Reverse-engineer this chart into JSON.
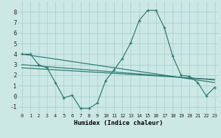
{
  "xlabel": "Humidex (Indice chaleur)",
  "background_color": "#cce8e5",
  "grid_color": "#aacfcc",
  "line_color": "#2a7a6e",
  "xlim": [
    -0.5,
    23.5
  ],
  "ylim": [
    -1.6,
    9.0
  ],
  "xticks": [
    0,
    1,
    2,
    3,
    4,
    5,
    6,
    7,
    8,
    9,
    10,
    11,
    12,
    13,
    14,
    15,
    16,
    17,
    18,
    19,
    20,
    21,
    22,
    23
  ],
  "yticks": [
    -1,
    0,
    1,
    2,
    3,
    4,
    5,
    6,
    7,
    8
  ],
  "main_x": [
    0,
    1,
    2,
    3,
    4,
    5,
    6,
    7,
    8,
    9,
    10,
    11,
    12,
    13,
    14,
    15,
    16,
    17,
    18,
    19,
    20,
    21,
    22,
    23
  ],
  "main_y": [
    4.0,
    4.0,
    3.0,
    2.7,
    1.3,
    -0.15,
    0.1,
    -1.15,
    -1.15,
    -0.65,
    1.5,
    2.5,
    3.6,
    5.1,
    7.2,
    8.15,
    8.15,
    6.5,
    3.8,
    2.0,
    1.9,
    1.3,
    0.05,
    0.85
  ],
  "line2_x": [
    0,
    23
  ],
  "line2_y": [
    4.0,
    1.3
  ],
  "line3_x": [
    0,
    23
  ],
  "line3_y": [
    3.0,
    1.55
  ],
  "line4_x": [
    0,
    23
  ],
  "line4_y": [
    2.7,
    1.6
  ]
}
